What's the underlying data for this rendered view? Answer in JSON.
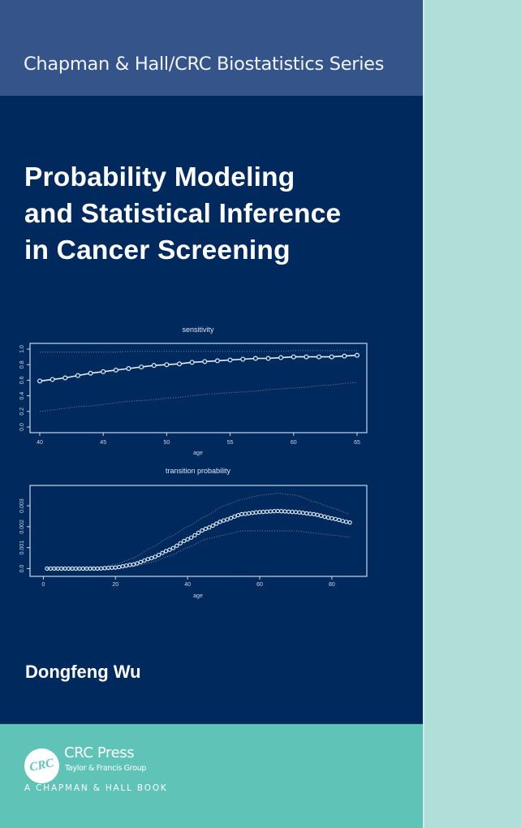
{
  "cover": {
    "series": "Chapman & Hall/CRC Biostatistics Series",
    "title_lines": [
      "Probability Modeling",
      "and Statistical Inference",
      "in Cancer Screening"
    ],
    "author": "Dongfeng Wu",
    "publisher": {
      "logo_text": "CRC",
      "name": "CRC Press",
      "group": "Taylor & Francis Group",
      "imprint": "A CHAPMAN & HALL BOOK"
    },
    "colors": {
      "series_band": "#34548A",
      "body": "#002A5E",
      "publisher_band": "#5FC3B7",
      "spine": "#B0DED9",
      "plot_ink": "#C9D6EA"
    }
  },
  "chart_data": [
    {
      "type": "line",
      "title": "sensitivity",
      "xlabel": "age",
      "ylabel": "",
      "xlim": [
        40,
        65
      ],
      "ylim": [
        0,
        1
      ],
      "x_ticks": [
        40,
        45,
        50,
        55,
        60,
        65
      ],
      "y_ticks": [
        "0.0",
        "0.2",
        "0.4",
        "0.6",
        "0.8",
        "1.0"
      ],
      "grid": false,
      "markers": "open circles",
      "x": [
        40,
        41,
        42,
        43,
        44,
        45,
        46,
        47,
        48,
        49,
        50,
        51,
        52,
        53,
        54,
        55,
        56,
        57,
        58,
        59,
        60,
        61,
        62,
        63,
        64,
        65
      ],
      "series": [
        {
          "name": "estimate",
          "style": "solid+markers",
          "values": [
            0.59,
            0.61,
            0.63,
            0.66,
            0.69,
            0.71,
            0.73,
            0.75,
            0.77,
            0.79,
            0.8,
            0.81,
            0.83,
            0.84,
            0.85,
            0.86,
            0.87,
            0.88,
            0.88,
            0.89,
            0.9,
            0.9,
            0.9,
            0.9,
            0.91,
            0.92
          ]
        },
        {
          "name": "upper bound",
          "style": "dotted",
          "values": [
            0.96,
            0.96,
            0.96,
            0.96,
            0.96,
            0.96,
            0.96,
            0.97,
            0.97,
            0.97,
            0.97,
            0.97,
            0.97,
            0.97,
            0.97,
            0.97,
            0.97,
            0.97,
            0.97,
            0.97,
            0.98,
            0.98,
            0.98,
            0.98,
            0.98,
            0.98
          ]
        },
        {
          "name": "lower bound",
          "style": "dotted",
          "values": [
            0.2,
            0.22,
            0.24,
            0.26,
            0.27,
            0.29,
            0.31,
            0.33,
            0.34,
            0.35,
            0.37,
            0.38,
            0.4,
            0.42,
            0.43,
            0.44,
            0.45,
            0.46,
            0.48,
            0.49,
            0.5,
            0.51,
            0.53,
            0.54,
            0.56,
            0.57
          ]
        }
      ]
    },
    {
      "type": "line",
      "title": "transition probability",
      "xlabel": "age",
      "ylabel": "",
      "xlim": [
        -1,
        87
      ],
      "ylim": [
        -0.0001,
        0.0037
      ],
      "x_ticks": [
        0,
        20,
        40,
        60,
        80
      ],
      "y_ticks": [
        "0.0",
        "0.001",
        "0.002",
        "0.003"
      ],
      "grid": false,
      "markers": "open circles at every age 1..85",
      "x": [
        1,
        5,
        10,
        15,
        20,
        25,
        30,
        35,
        40,
        45,
        50,
        55,
        60,
        65,
        70,
        75,
        80,
        85
      ],
      "series": [
        {
          "name": "estimate",
          "style": "markers",
          "values": [
            0,
            0,
            0,
            0,
            5e-05,
            0.0002,
            0.0005,
            0.0009,
            0.0014,
            0.0019,
            0.0023,
            0.0026,
            0.0027,
            0.00275,
            0.0027,
            0.0026,
            0.0024,
            0.0022
          ]
        },
        {
          "name": "upper bound",
          "style": "dotted",
          "values": [
            0,
            0,
            0,
            3e-05,
            0.0002,
            0.0005,
            0.001,
            0.0015,
            0.002,
            0.0025,
            0.003,
            0.0033,
            0.0035,
            0.0036,
            0.0035,
            0.0032,
            0.0029,
            0.0026
          ]
        },
        {
          "name": "lower bound",
          "style": "dotted",
          "values": [
            0,
            0,
            0,
            0,
            0,
            0.0001,
            0.0003,
            0.0006,
            0.001,
            0.0014,
            0.0016,
            0.0018,
            0.0018,
            0.0018,
            0.0018,
            0.0017,
            0.0016,
            0.0015
          ]
        }
      ]
    }
  ]
}
